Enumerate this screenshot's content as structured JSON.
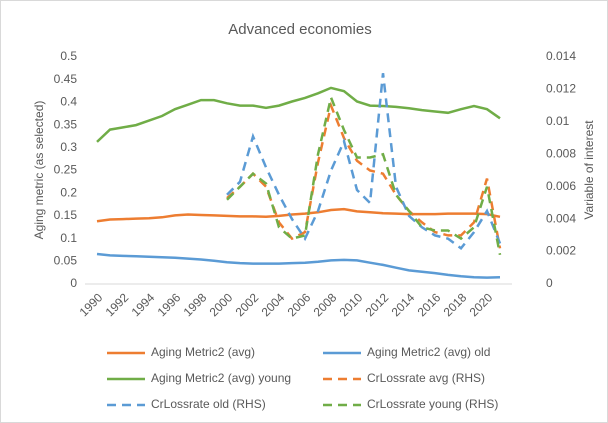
{
  "chart_data": {
    "type": "line",
    "title": "Advanced economies",
    "y_label": "Aging metric (as selected)",
    "y2_label": "Variable of interest",
    "x": [
      1990,
      1991,
      1992,
      1993,
      1994,
      1995,
      1996,
      1997,
      1998,
      1999,
      2000,
      2001,
      2002,
      2003,
      2004,
      2005,
      2006,
      2007,
      2008,
      2009,
      2010,
      2011,
      2012,
      2013,
      2014,
      2015,
      2016,
      2017,
      2018,
      2019,
      2020,
      2021
    ],
    "xlim": [
      1990,
      2021
    ],
    "xticks": [
      1990,
      1992,
      1994,
      1996,
      1998,
      2000,
      2002,
      2004,
      2006,
      2008,
      2010,
      2012,
      2014,
      2016,
      2018,
      2020
    ],
    "ylim": [
      0,
      0.5
    ],
    "yticks": [
      0,
      0.05,
      0.1,
      0.15,
      0.2,
      0.25,
      0.3,
      0.35,
      0.4,
      0.45,
      0.5
    ],
    "y2lim": [
      0,
      0.014
    ],
    "y2ticks": [
      0,
      0.002,
      0.004,
      0.006,
      0.008,
      0.01,
      0.012,
      0.014
    ],
    "grid": false,
    "legend": "bottom",
    "series": [
      {
        "name": "Aging Metric2 (avg)",
        "color": "#ed7d31",
        "dash": false,
        "values": [
          0.138,
          0.142,
          0.143,
          0.144,
          0.145,
          0.147,
          0.151,
          0.153,
          0.152,
          0.151,
          0.15,
          0.149,
          0.149,
          0.148,
          0.15,
          0.153,
          0.155,
          0.158,
          0.163,
          0.165,
          0.16,
          0.158,
          0.156,
          0.155,
          0.154,
          0.154,
          0.154,
          0.155,
          0.155,
          0.155,
          0.154,
          0.148
        ]
      },
      {
        "name": "Aging Metric2 (avg) old",
        "color": "#5b9bd5",
        "dash": false,
        "values": [
          0.066,
          0.063,
          0.062,
          0.061,
          0.06,
          0.059,
          0.058,
          0.056,
          0.054,
          0.051,
          0.048,
          0.046,
          0.045,
          0.045,
          0.045,
          0.046,
          0.047,
          0.049,
          0.052,
          0.053,
          0.052,
          0.047,
          0.042,
          0.036,
          0.03,
          0.027,
          0.024,
          0.02,
          0.017,
          0.015,
          0.014,
          0.015
        ]
      },
      {
        "name": "Aging Metric2 (avg) young",
        "color": "#70ad47",
        "dash": false,
        "values": [
          0.313,
          0.34,
          0.345,
          0.35,
          0.36,
          0.37,
          0.385,
          0.395,
          0.405,
          0.405,
          0.398,
          0.393,
          0.393,
          0.388,
          0.393,
          0.402,
          0.41,
          0.42,
          0.432,
          0.425,
          0.402,
          0.393,
          0.392,
          0.39,
          0.387,
          0.383,
          0.38,
          0.377,
          0.385,
          0.392,
          0.385,
          0.365
        ]
      },
      {
        "name": "CrLossrate avg (RHS)",
        "color": "#ed7d31",
        "dash": true,
        "axis": "y2",
        "values": [
          null,
          null,
          null,
          null,
          null,
          null,
          null,
          null,
          null,
          null,
          0.0053,
          0.006,
          0.0068,
          0.006,
          0.0038,
          0.0028,
          0.0032,
          0.0075,
          0.011,
          0.009,
          0.0076,
          0.007,
          0.0068,
          0.0055,
          0.0045,
          0.0038,
          0.0032,
          0.003,
          0.003,
          0.0038,
          0.0065,
          0.0022
        ]
      },
      {
        "name": "CrLossrate old (RHS)",
        "color": "#5b9bd5",
        "dash": true,
        "axis": "y2",
        "values": [
          null,
          null,
          null,
          null,
          null,
          null,
          null,
          null,
          null,
          null,
          0.0055,
          0.0063,
          0.0091,
          0.0072,
          0.0055,
          0.004,
          0.0028,
          0.0045,
          0.007,
          0.0088,
          0.0058,
          0.005,
          0.013,
          0.006,
          0.0042,
          0.0035,
          0.003,
          0.0028,
          0.0022,
          0.0032,
          0.0045,
          0.0025
        ]
      },
      {
        "name": "CrLossrate young (RHS)",
        "color": "#70ad47",
        "dash": true,
        "axis": "y2",
        "values": [
          null,
          null,
          null,
          null,
          null,
          null,
          null,
          null,
          null,
          null,
          0.0052,
          0.006,
          0.0068,
          0.0062,
          0.0035,
          0.0028,
          0.003,
          0.008,
          0.0115,
          0.0095,
          0.0078,
          0.0078,
          0.008,
          0.0055,
          0.0045,
          0.0035,
          0.0033,
          0.0033,
          0.0028,
          0.0035,
          0.006,
          0.0018
        ]
      }
    ]
  }
}
